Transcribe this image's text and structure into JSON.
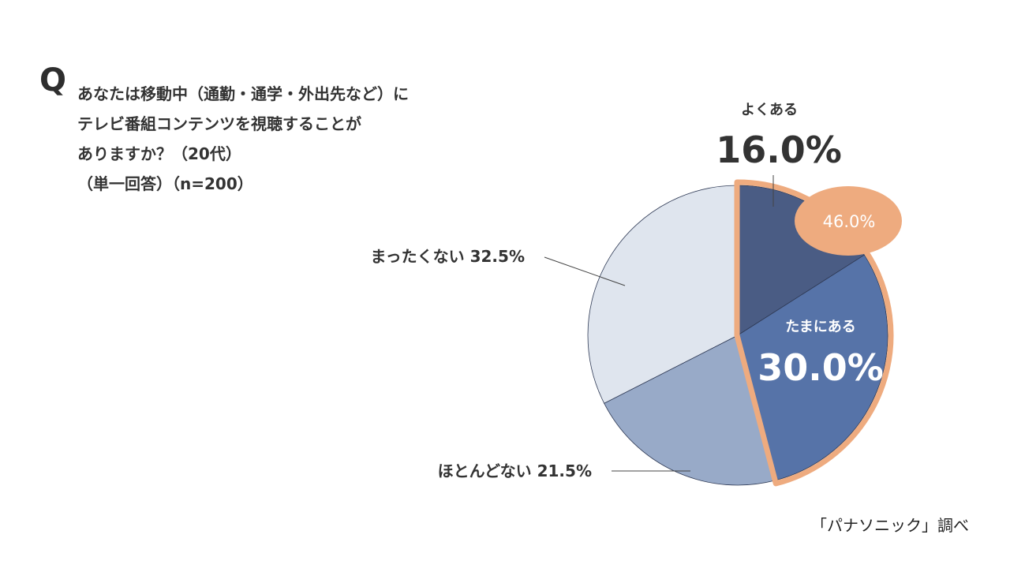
{
  "question": {
    "mark": "Q",
    "lines": [
      "あなたは移動中（通勤・通学・外出先など）に",
      "テレビ番組コンテンツを視聴することが",
      "ありますか？（20代）",
      "（単一回答）（n=200）"
    ]
  },
  "source": "「パナソニック」調べ",
  "chart_data": {
    "type": "pie",
    "slices": [
      {
        "label": "よくある",
        "value": 16.0,
        "value_label": "16.0%",
        "color": "#4a5c84"
      },
      {
        "label": "たまにある",
        "value": 30.0,
        "value_label": "30.0%",
        "color": "#5673a8"
      },
      {
        "label": "ほとんどない",
        "value": 21.5,
        "value_label": "21.5%",
        "color": "#98aac8"
      },
      {
        "label": "まったくない",
        "value": 32.5,
        "value_label": "32.5%",
        "color": "#dfe5ee"
      }
    ],
    "highlight": {
      "value_label": "46.0%",
      "color": "#eeab7f",
      "slices": [
        "よくある",
        "たまにある"
      ]
    }
  }
}
